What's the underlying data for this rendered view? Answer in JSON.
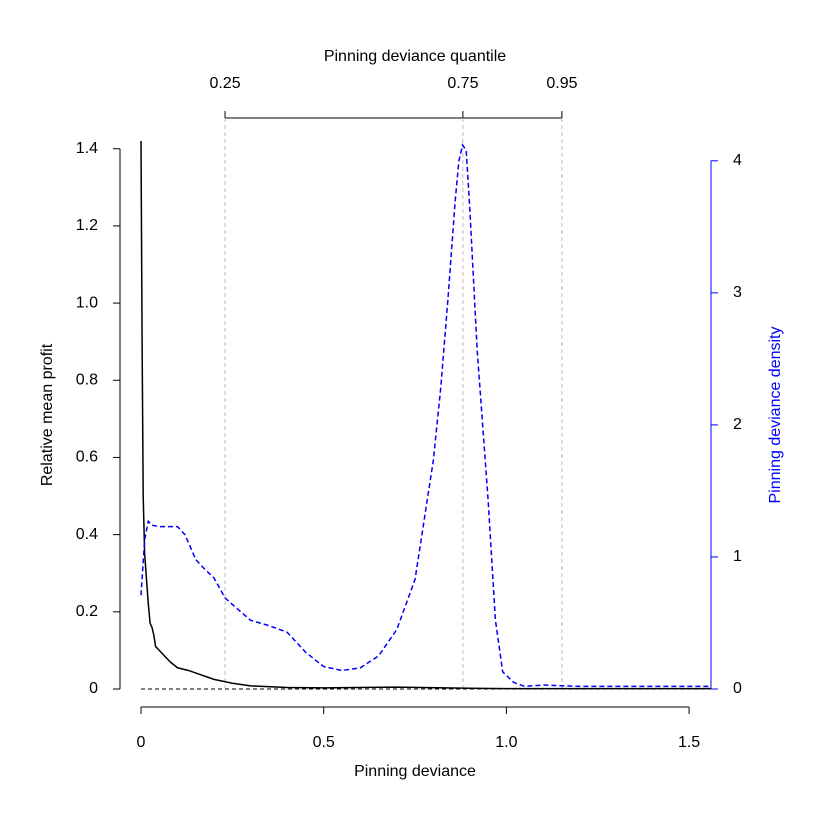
{
  "chart_data": {
    "type": "line",
    "xlabel": "Pinning deviance",
    "ylabel": "Relative mean profit",
    "y2label": "Pinning deviance density",
    "top_axis": {
      "label": "Pinning deviance quantile",
      "ticks": [
        {
          "value": 0.23,
          "label": "0.25"
        },
        {
          "value": 0.881,
          "label": "0.75"
        },
        {
          "value": 1.152,
          "label": "0.95"
        }
      ]
    },
    "xlim": [
      0,
      1.56
    ],
    "xticks": [
      0,
      0.5,
      {
        "value": 1,
        "label": "1.0"
      },
      1.5
    ],
    "ylim": [
      0,
      1.42
    ],
    "yticks": [
      0,
      0.2,
      0.4,
      0.6,
      0.8,
      {
        "value": 1,
        "label": "1.0"
      },
      1.2,
      1.4
    ],
    "y2lim": [
      0,
      4.15
    ],
    "y2ticks": [
      0,
      1,
      2,
      3,
      4
    ],
    "y2color": "#0000ff",
    "hline": 0,
    "series": [
      {
        "color": "#000000",
        "dashed": false,
        "x": [
          0,
          0.003,
          0.006,
          0.01,
          0.02,
          0.025,
          0.03,
          0.035,
          0.04,
          0.05,
          0.06,
          0.08,
          0.1,
          0.13,
          0.16,
          0.2,
          0.25,
          0.3,
          0.4,
          0.5,
          0.7,
          0.9,
          1.0,
          1.56
        ],
        "values": [
          1.42,
          0.9,
          0.5,
          0.35,
          0.22,
          0.17,
          0.16,
          0.14,
          0.11,
          0.1,
          0.09,
          0.07,
          0.055,
          0.048,
          0.038,
          0.025,
          0.015,
          0.008,
          0.004,
          0.003,
          0.005,
          0.002,
          0.001,
          0.001
        ]
      },
      {
        "color": "#0000ff",
        "dashed": true,
        "axis": "y2",
        "x": [
          0,
          0.01,
          0.02,
          0.03,
          0.05,
          0.1,
          0.12,
          0.15,
          0.17,
          0.2,
          0.23,
          0.25,
          0.3,
          0.35,
          0.4,
          0.45,
          0.5,
          0.55,
          0.6,
          0.65,
          0.7,
          0.75,
          0.8,
          0.82,
          0.84,
          0.86,
          0.87,
          0.88,
          0.89,
          0.9,
          0.92,
          0.95,
          0.97,
          0.99,
          1.02,
          1.05,
          1.1,
          1.2,
          1.4,
          1.56
        ],
        "values": [
          0.71,
          1.13,
          1.27,
          1.24,
          1.23,
          1.23,
          1.17,
          0.98,
          0.92,
          0.84,
          0.69,
          0.64,
          0.52,
          0.48,
          0.43,
          0.28,
          0.17,
          0.14,
          0.16,
          0.25,
          0.45,
          0.83,
          1.73,
          2.27,
          2.95,
          3.7,
          4.0,
          4.12,
          4.08,
          3.63,
          2.57,
          1.43,
          0.52,
          0.13,
          0.05,
          0.02,
          0.03,
          0.02,
          0.02,
          0.02
        ]
      }
    ]
  }
}
